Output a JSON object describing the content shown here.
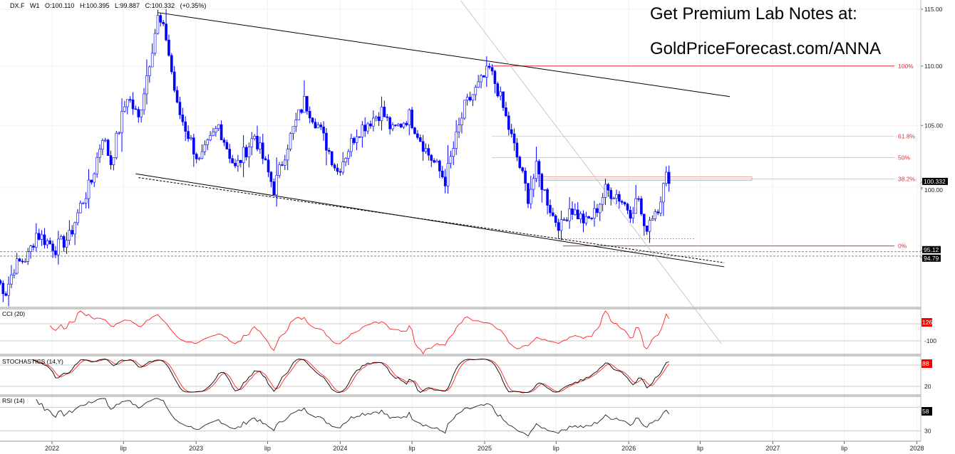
{
  "header": {
    "symbol": "DX.F",
    "interval": "W1",
    "open": "O:100.110",
    "high": "H:100.395",
    "low": "L:99.887",
    "close": "C:100.332",
    "change": "(+0.35%)"
  },
  "promo": {
    "line1": "Get Premium Lab Notes at:",
    "line2": "GoldPriceForecast.com/ANNA"
  },
  "colors": {
    "candle": "#0000ff",
    "fib": "#e03030",
    "cci": "#ff2020",
    "stoch_k": "#000000",
    "stoch_d": "#ff2020",
    "rsi": "#222222",
    "trendline": "#000000"
  },
  "chart_data": [
    {
      "type": "candlestick",
      "title": "DX.F W1",
      "y_scale": "log",
      "ylim": [
        90.5,
        115.8
      ],
      "y_ticks": [
        "115.00",
        "110.00",
        "105.00",
        "100.00"
      ],
      "y_tick_values": [
        115,
        110,
        105,
        100
      ],
      "x_ticks": [
        "2022",
        "lip",
        "2023",
        "lip",
        "2024",
        "lip",
        "2025",
        "lip",
        "2026",
        "lip",
        "2027",
        "lip",
        "2028"
      ],
      "x_tick_dates": [
        "2022-01-01",
        "2022-07-01",
        "2023-01-01",
        "2023-07-01",
        "2024-01-01",
        "2024-07-01",
        "2025-01-01",
        "2025-07-01",
        "2026-01-01",
        "2026-07-01",
        "2027-01-01",
        "2027-07-01",
        "2028-01-01"
      ],
      "price_path": [
        [
          "2021-08-16",
          93.0
        ],
        [
          "2021-09-06",
          92.2
        ],
        [
          "2021-09-27",
          94.0
        ],
        [
          "2021-11-01",
          94.8
        ],
        [
          "2021-11-22",
          96.5
        ],
        [
          "2022-01-10",
          95.4
        ],
        [
          "2022-02-14",
          96.2
        ],
        [
          "2022-03-14",
          98.6
        ],
        [
          "2022-04-11",
          100.5
        ],
        [
          "2022-05-09",
          104.2
        ],
        [
          "2022-05-30",
          102.0
        ],
        [
          "2022-07-11",
          107.5
        ],
        [
          "2022-08-08",
          105.5
        ],
        [
          "2022-09-26",
          114.2
        ],
        [
          "2022-10-17",
          112.5
        ],
        [
          "2022-11-14",
          106.5
        ],
        [
          "2023-01-09",
          102.0
        ],
        [
          "2023-02-27",
          105.0
        ],
        [
          "2023-04-10",
          101.5
        ],
        [
          "2023-05-29",
          104.2
        ],
        [
          "2023-07-17",
          99.9
        ],
        [
          "2023-08-21",
          103.5
        ],
        [
          "2023-10-02",
          107.0
        ],
        [
          "2023-11-06",
          105.0
        ],
        [
          "2023-12-25",
          101.3
        ],
        [
          "2024-02-12",
          104.5
        ],
        [
          "2024-04-15",
          106.2
        ],
        [
          "2024-05-13",
          104.5
        ],
        [
          "2024-06-24",
          105.8
        ],
        [
          "2024-08-05",
          103.0
        ],
        [
          "2024-09-23",
          100.6
        ],
        [
          "2024-11-11",
          106.5
        ],
        [
          "2025-01-13",
          109.7
        ],
        [
          "2025-02-03",
          108.0
        ],
        [
          "2025-03-10",
          104.0
        ],
        [
          "2025-04-21",
          99.3
        ],
        [
          "2025-05-12",
          101.5
        ],
        [
          "2025-06-23",
          97.8
        ],
        [
          "2025-07-14",
          97.0
        ],
        [
          "2025-08-04",
          98.5
        ],
        [
          "2025-09-15",
          97.3
        ],
        [
          "2025-10-06",
          98.0
        ],
        [
          "2025-11-03",
          99.8
        ],
        [
          "2025-12-01",
          99.5
        ],
        [
          "2026-01-05",
          98.2
        ],
        [
          "2026-01-26",
          99.2
        ],
        [
          "2026-02-09",
          96.6
        ],
        [
          "2026-02-23",
          97.6
        ],
        [
          "2026-03-16",
          98.6
        ],
        [
          "2026-04-06",
          100.8
        ],
        [
          "2026-04-13",
          100.332
        ]
      ],
      "current_price_label": "100.332",
      "fibonacci": {
        "levels": [
          {
            "label": "100%",
            "price": 110.0
          },
          {
            "label": "61.8%",
            "price": 104.1
          },
          {
            "label": "50%",
            "price": 102.4
          },
          {
            "label": "38.2%",
            "price": 100.7
          },
          {
            "label": "0%",
            "price": 95.55
          }
        ]
      },
      "horizontal_levels": [
        {
          "label": "95.12",
          "price": 95.12
        },
        {
          "label": "94.79",
          "price": 94.79
        }
      ],
      "trendlines": [
        {
          "style": "solid",
          "color": "#000000",
          "from": [
            "2022-09-26",
            114.7
          ],
          "to": [
            "2026-09-14",
            107.4
          ]
        },
        {
          "style": "solid",
          "color": "#000000",
          "from": [
            "2022-08-01",
            101.1
          ],
          "to": [
            "2026-08-31",
            94.0
          ]
        },
        {
          "style": "dashed",
          "color": "#000000",
          "from": [
            "2022-08-08",
            100.8
          ],
          "to": [
            "2026-08-31",
            94.3
          ]
        },
        {
          "style": "solid",
          "color": "#bbbbbb",
          "from": [
            "2024-11-01",
            115.8
          ],
          "to": [
            "2026-08-24",
            88.5
          ]
        }
      ]
    },
    {
      "type": "line",
      "title": "CCI (20)",
      "ref_lines": [
        100,
        -100
      ],
      "y_ticks": [
        "-100"
      ],
      "last_value_label": "126"
    },
    {
      "type": "line",
      "title": "STOCHASTICS (14,Y)",
      "ref_lines": [
        80,
        20
      ],
      "y_ticks": [
        "20"
      ],
      "last_value_label": "88"
    },
    {
      "type": "line",
      "title": "RSI (14)",
      "ref_lines": [
        70,
        30
      ],
      "y_ticks": [
        "30"
      ],
      "last_value_label": "58"
    }
  ]
}
